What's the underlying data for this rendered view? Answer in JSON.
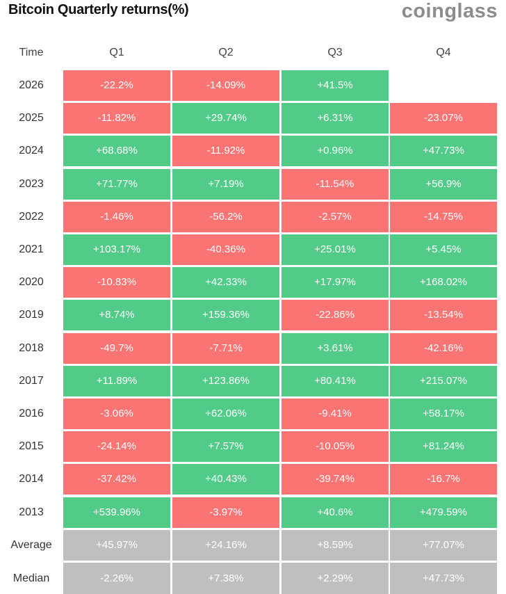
{
  "title": "Bitcoin Quarterly returns(%)",
  "brand": "coinglass",
  "colors": {
    "positive": "#52cb88",
    "negative": "#f97473",
    "summary": "#bfbfbf"
  },
  "chart_data": {
    "type": "table",
    "row_header": "Time",
    "columns": [
      "Q1",
      "Q2",
      "Q3",
      "Q4"
    ],
    "rows": [
      {
        "label": "2026",
        "values": [
          "-22.2%",
          "-14.09%",
          "+41.5%",
          ""
        ]
      },
      {
        "label": "2025",
        "values": [
          "-11.82%",
          "+29.74%",
          "+6.31%",
          "-23.07%"
        ]
      },
      {
        "label": "2024",
        "values": [
          "+68.68%",
          "-11.92%",
          "+0.96%",
          "+47.73%"
        ]
      },
      {
        "label": "2023",
        "values": [
          "+71.77%",
          "+7.19%",
          "-11.54%",
          "+56.9%"
        ]
      },
      {
        "label": "2022",
        "values": [
          "-1.46%",
          "-56.2%",
          "-2.57%",
          "-14.75%"
        ]
      },
      {
        "label": "2021",
        "values": [
          "+103.17%",
          "-40.36%",
          "+25.01%",
          "+5.45%"
        ]
      },
      {
        "label": "2020",
        "values": [
          "-10.83%",
          "+42.33%",
          "+17.97%",
          "+168.02%"
        ]
      },
      {
        "label": "2019",
        "values": [
          "+8.74%",
          "+159.36%",
          "-22.86%",
          "-13.54%"
        ]
      },
      {
        "label": "2018",
        "values": [
          "-49.7%",
          "-7.71%",
          "+3.61%",
          "-42.16%"
        ]
      },
      {
        "label": "2017",
        "values": [
          "+11.89%",
          "+123.86%",
          "+80.41%",
          "+215.07%"
        ]
      },
      {
        "label": "2016",
        "values": [
          "-3.06%",
          "+62.06%",
          "-9.41%",
          "+58.17%"
        ]
      },
      {
        "label": "2015",
        "values": [
          "-24.14%",
          "+7.57%",
          "-10.05%",
          "+81.24%"
        ]
      },
      {
        "label": "2014",
        "values": [
          "-37.42%",
          "+40.43%",
          "-39.74%",
          "-16.7%"
        ]
      },
      {
        "label": "2013",
        "values": [
          "+539.96%",
          "-3.97%",
          "+40.6%",
          "+479.59%"
        ]
      }
    ],
    "summary_rows": [
      {
        "label": "Average",
        "values": [
          "+45.97%",
          "+24.16%",
          "+8.59%",
          "+77.07%"
        ]
      },
      {
        "label": "Median",
        "values": [
          "-2.26%",
          "+7.38%",
          "+2.29%",
          "+47.73%"
        ]
      }
    ]
  }
}
